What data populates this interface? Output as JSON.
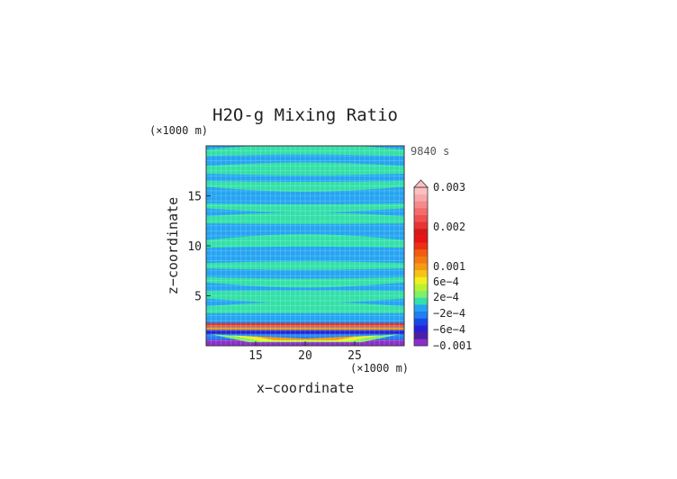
{
  "chart_data": {
    "type": "heatmap",
    "title": "H2O-g Mixing Ratio",
    "xlabel": "x−coordinate",
    "ylabel": "z−coordinate",
    "x_unit": "(×1000 m)",
    "y_unit": "(×1000 m)",
    "time_label": "9840 s",
    "xlim": [
      10,
      30
    ],
    "ylim": [
      0,
      20
    ],
    "x_ticks": [
      15,
      20,
      25
    ],
    "y_ticks": [
      5,
      10,
      15
    ],
    "colorbar": {
      "labels": [
        "0.003",
        "0.002",
        "0.001",
        "6e−4",
        "2e−4",
        "−2e−4",
        "−6e−4",
        "−0.001"
      ],
      "levels": [
        {
          "color": "#8b2fc9"
        },
        {
          "color": "#4b1fa8"
        },
        {
          "color": "#2a1fd6"
        },
        {
          "color": "#1848e8"
        },
        {
          "color": "#1f7ff0"
        },
        {
          "color": "#25a4f2"
        },
        {
          "color": "#33e0a8"
        },
        {
          "color": "#7ef06a"
        },
        {
          "color": "#b8f22e"
        },
        {
          "color": "#f0f020"
        },
        {
          "color": "#f6c417"
        },
        {
          "color": "#f59a14"
        },
        {
          "color": "#f47a12"
        },
        {
          "color": "#f25c10"
        },
        {
          "color": "#ee3012"
        },
        {
          "color": "#e81414"
        },
        {
          "color": "#d81818"
        },
        {
          "color": "#e83434"
        },
        {
          "color": "#f05050"
        },
        {
          "color": "#f46c6c"
        },
        {
          "color": "#f68a8a"
        },
        {
          "color": "#f8a8a8"
        },
        {
          "color": "#fbc0c0"
        }
      ]
    },
    "field": {
      "background_color": "#25a4f2",
      "band_color": "#33e0a8",
      "bands_z": [
        19.3,
        17.6,
        16.2,
        14.0,
        12.6,
        10.2,
        8.0,
        6.6,
        5.1,
        3.6
      ]
    }
  }
}
